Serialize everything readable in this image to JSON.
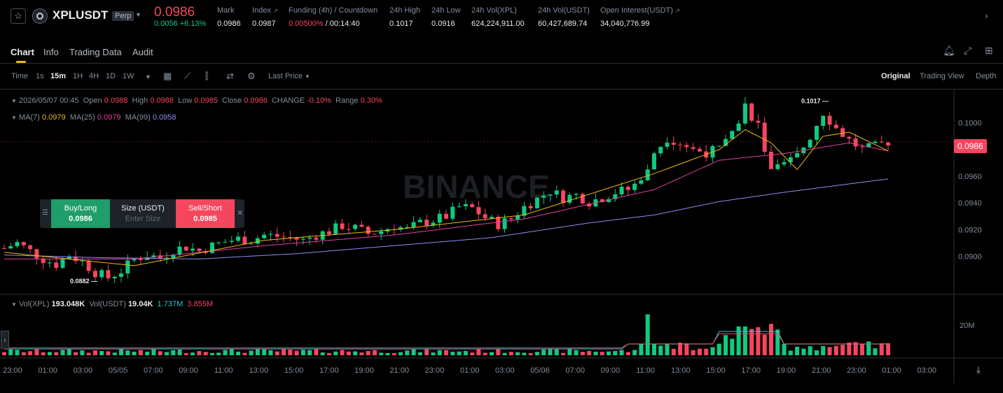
{
  "header": {
    "symbol": "XPLUSDT",
    "badge": "Perp",
    "last_price": "0.0986",
    "change": "0.0056 +6.13%",
    "stats": [
      {
        "label": "Mark",
        "value": "0.0986"
      },
      {
        "label": "Index",
        "value": "0.0987"
      },
      {
        "label": "Funding (4h) / Countdown",
        "value_rate": "0.00500%",
        "value_countdown": "/ 00:14:40"
      },
      {
        "label": "24h High",
        "value": "0.1017"
      },
      {
        "label": "24h Low",
        "value": "0.0916"
      },
      {
        "label": "24h Vol(XPL)",
        "value": "624,224,911.00"
      },
      {
        "label": "24h Vol(USDT)",
        "value": "60,427,689.74"
      },
      {
        "label": "Open Interest(USDT)",
        "value": "34,040,776.99"
      }
    ]
  },
  "tabs": [
    "Chart",
    "Info",
    "Trading Data",
    "Audit"
  ],
  "toolbar": {
    "time_label": "Time",
    "intervals": [
      "1s",
      "15m",
      "1H",
      "4H",
      "1D",
      "1W"
    ],
    "active_interval": "15m",
    "price_type": "Last Price",
    "views": [
      "Original",
      "Trading View",
      "Depth"
    ],
    "active_view": "Original"
  },
  "ohlc": {
    "datetime": "2026/05/07 00:45",
    "open_label": "Open",
    "open": "0.0988",
    "high_label": "High",
    "high": "0.0988",
    "low_label": "Low",
    "low": "0.0985",
    "close_label": "Close",
    "close": "0.0986",
    "change_label": "CHANGE",
    "change": "-0.10%",
    "range_label": "Range",
    "range": "0.30%"
  },
  "ma": {
    "ma7_label": "MA(7)",
    "ma7": "0.0979",
    "ma25_label": "MA(25)",
    "ma25": "0.0979",
    "ma99_label": "MA(99)",
    "ma99": "0.0958"
  },
  "volume": {
    "vol_xpl_label": "Vol(XPL)",
    "vol_xpl": "193.048K",
    "vol_usdt_label": "Vol(USDT)",
    "vol_usdt": "19.04K",
    "ma1": "1.737M",
    "ma2": "3.855M",
    "axis_label": "20M"
  },
  "order": {
    "buy_label": "Buy/Long",
    "buy_price": "0.0986",
    "size_label": "Size (USDT)",
    "size_placeholder": "Enter Size",
    "sell_label": "Sell/Short",
    "sell_price": "0.0985"
  },
  "watermark": "BINANCE",
  "current_price_tag": "0.0986",
  "colors": {
    "up": "#0ecb81",
    "down": "#f6465d",
    "ma7": "#f0b90b",
    "ma25": "#e040a0",
    "ma99": "#8b8ef5",
    "accent": "#f0b90b"
  },
  "chart_data": {
    "type": "candlestick",
    "interval": "15m",
    "y_ticks": [
      "0.1000",
      "0.0980",
      "0.0960",
      "0.0940",
      "0.0920",
      "0.0900"
    ],
    "ylim": [
      0.0872,
      0.1025
    ],
    "x_ticks": [
      "23:00",
      "01:00",
      "03:00",
      "05/05",
      "07:00",
      "09:00",
      "11:00",
      "13:00",
      "15:00",
      "17:00",
      "19:00",
      "21:00",
      "23:00",
      "01:00",
      "03:00",
      "05/06",
      "07:00",
      "09:00",
      "11:00",
      "13:00",
      "15:00",
      "17:00",
      "19:00",
      "21:00",
      "23:00",
      "01:00",
      "03:00"
    ],
    "annotations": [
      {
        "label": "0.1017",
        "type": "high"
      },
      {
        "label": "0.0882",
        "type": "low"
      }
    ],
    "close_path": [
      [
        0,
        0.0906
      ],
      [
        2,
        0.091
      ],
      [
        4,
        0.0904
      ],
      [
        6,
        0.0898
      ],
      [
        8,
        0.0894
      ],
      [
        10,
        0.0901
      ],
      [
        12,
        0.0896
      ],
      [
        14,
        0.0888
      ],
      [
        16,
        0.0884
      ],
      [
        18,
        0.0889
      ],
      [
        20,
        0.0898
      ],
      [
        22,
        0.0901
      ],
      [
        24,
        0.0899
      ],
      [
        26,
        0.0905
      ],
      [
        28,
        0.0907
      ],
      [
        30,
        0.0904
      ],
      [
        32,
        0.0908
      ],
      [
        34,
        0.0911
      ],
      [
        36,
        0.0913
      ],
      [
        38,
        0.0912
      ],
      [
        40,
        0.0916
      ],
      [
        42,
        0.0915
      ],
      [
        44,
        0.0914
      ],
      [
        46,
        0.0912
      ],
      [
        48,
        0.0916
      ],
      [
        50,
        0.0919
      ],
      [
        52,
        0.0923
      ],
      [
        54,
        0.0921
      ],
      [
        56,
        0.0917
      ],
      [
        58,
        0.0919
      ],
      [
        60,
        0.0923
      ],
      [
        62,
        0.092
      ],
      [
        64,
        0.0925
      ],
      [
        66,
        0.0927
      ],
      [
        68,
        0.093
      ],
      [
        70,
        0.0937
      ],
      [
        72,
        0.0936
      ],
      [
        74,
        0.0929
      ],
      [
        76,
        0.0924
      ],
      [
        78,
        0.0928
      ],
      [
        80,
        0.0937
      ],
      [
        82,
        0.0943
      ],
      [
        84,
        0.0949
      ],
      [
        86,
        0.0944
      ],
      [
        88,
        0.0946
      ],
      [
        90,
        0.0941
      ],
      [
        92,
        0.0944
      ],
      [
        94,
        0.0948
      ],
      [
        96,
        0.095
      ],
      [
        98,
        0.0957
      ],
      [
        100,
        0.0978
      ],
      [
        102,
        0.0989
      ],
      [
        104,
        0.0985
      ],
      [
        106,
        0.098
      ],
      [
        108,
        0.0978
      ],
      [
        110,
        0.098
      ],
      [
        112,
        0.099
      ],
      [
        114,
        0.1013
      ],
      [
        116,
        0.0998
      ],
      [
        118,
        0.0962
      ],
      [
        120,
        0.0968
      ],
      [
        122,
        0.0975
      ],
      [
        124,
        0.099
      ],
      [
        126,
        0.1008
      ],
      [
        128,
        0.0996
      ],
      [
        130,
        0.0987
      ],
      [
        132,
        0.098
      ],
      [
        134,
        0.0982
      ],
      [
        136,
        0.0986
      ]
    ],
    "ma7_path": [
      [
        0,
        0.0903
      ],
      [
        20,
        0.0893
      ],
      [
        40,
        0.0912
      ],
      [
        60,
        0.092
      ],
      [
        80,
        0.0931
      ],
      [
        100,
        0.0962
      ],
      [
        110,
        0.098
      ],
      [
        114,
        0.0995
      ],
      [
        118,
        0.0985
      ],
      [
        122,
        0.0965
      ],
      [
        126,
        0.099
      ],
      [
        130,
        0.0993
      ],
      [
        136,
        0.0979
      ]
    ],
    "ma25_path": [
      [
        0,
        0.0898
      ],
      [
        20,
        0.0898
      ],
      [
        40,
        0.0908
      ],
      [
        60,
        0.0916
      ],
      [
        80,
        0.0928
      ],
      [
        100,
        0.095
      ],
      [
        110,
        0.0972
      ],
      [
        120,
        0.0977
      ],
      [
        130,
        0.0985
      ],
      [
        136,
        0.0979
      ]
    ],
    "ma99_path": [
      [
        0,
        0.0901
      ],
      [
        15,
        0.0899
      ],
      [
        30,
        0.0898
      ],
      [
        45,
        0.0902
      ],
      [
        60,
        0.0908
      ],
      [
        75,
        0.0914
      ],
      [
        90,
        0.0925
      ],
      [
        100,
        0.0931
      ],
      [
        110,
        0.0941
      ],
      [
        120,
        0.0948
      ],
      [
        136,
        0.0958
      ]
    ]
  }
}
